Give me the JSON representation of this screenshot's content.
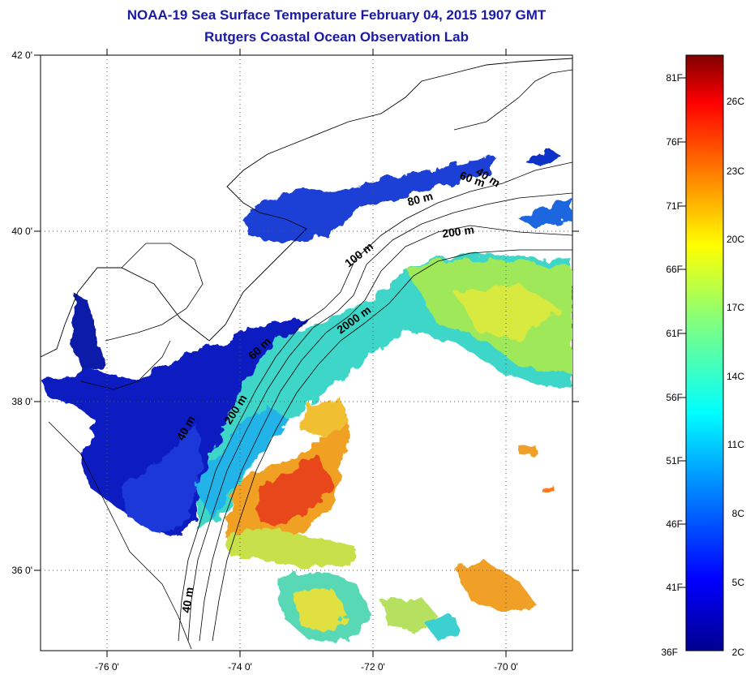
{
  "title": "NOAA-19 Sea Surface Temperature February 04, 2015 1907 GMT",
  "subtitle": "Rutgers Coastal Ocean Observation Lab",
  "map": {
    "lon_range": [
      -77.0,
      -69.0
    ],
    "lat_range": [
      35.0,
      42.0
    ],
    "grid": "dotted",
    "lon_ticks": [
      {
        "value": -76,
        "label": "-76 0'"
      },
      {
        "value": -74,
        "label": "-74 0'"
      },
      {
        "value": -72,
        "label": "-72 0'"
      },
      {
        "value": -70,
        "label": "-70 0'"
      }
    ],
    "lat_ticks": [
      {
        "value": 42,
        "label": "42 0'"
      },
      {
        "value": 40,
        "label": "40 0'"
      },
      {
        "value": 38,
        "label": "38 0'"
      },
      {
        "value": 36,
        "label": "36 0'"
      }
    ],
    "isobath_labels": [
      "40 m",
      "60 m",
      "80 m",
      "200 m",
      "100 m",
      "2000 m",
      "60 m",
      "40 m",
      "200 m",
      "40 m"
    ]
  },
  "colorbar": {
    "range_c": [
      2,
      28.3
    ],
    "fahrenheit_labels": [
      "81F",
      "76F",
      "71F",
      "66F",
      "61F",
      "56F",
      "51F",
      "46F",
      "41F",
      "36F"
    ],
    "celsius_labels": [
      "26C",
      "23C",
      "20C",
      "17C",
      "14C",
      "11C",
      "8C",
      "5C",
      "2C"
    ],
    "colors": [
      "#00008f",
      "#0000ff",
      "#00a0ff",
      "#00ffff",
      "#80ff80",
      "#ffff00",
      "#ff8000",
      "#ff0000",
      "#800000"
    ]
  }
}
